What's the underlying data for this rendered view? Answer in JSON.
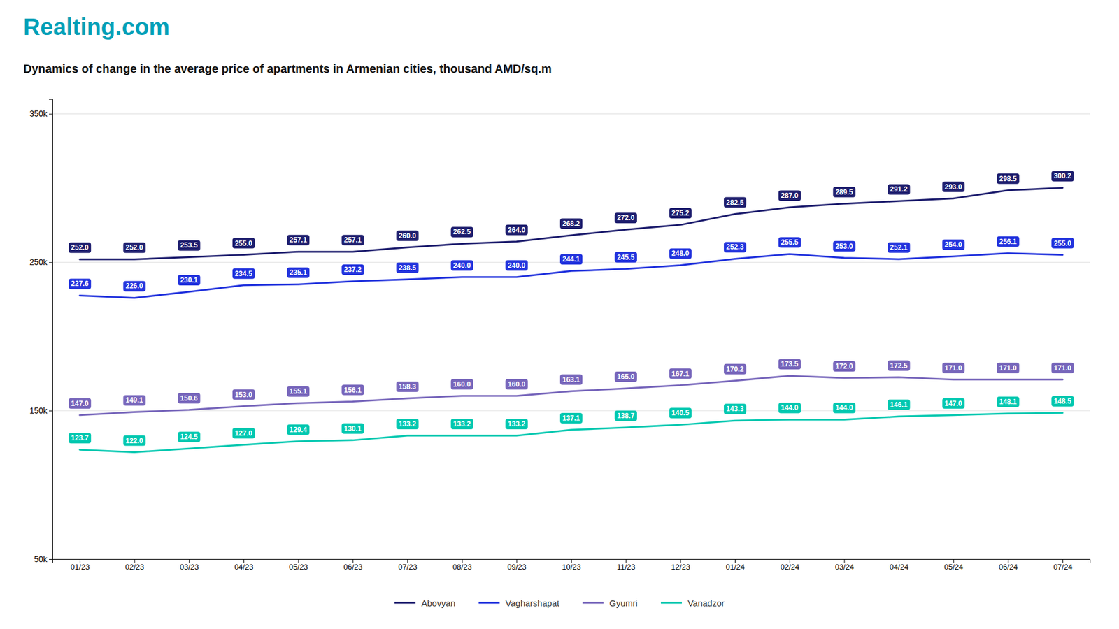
{
  "chart_data": {
    "type": "line",
    "title": "Dynamics of change in the average price of apartments in Armenian cities, thousand AMD/sq.m",
    "annotations": [
      "Realting.com"
    ],
    "categories": [
      "01/23",
      "02/23",
      "03/23",
      "04/23",
      "05/23",
      "06/23",
      "07/23",
      "08/23",
      "09/23",
      "10/23",
      "11/23",
      "12/23",
      "01/24",
      "02/24",
      "03/24",
      "04/24",
      "05/24",
      "06/24",
      "07/24"
    ],
    "series": [
      {
        "name": "Abovyan",
        "color": "#1e1e6e",
        "values": [
          252.0,
          252.0,
          253.5,
          255.0,
          257.1,
          257.1,
          260.0,
          262.5,
          264.0,
          268.2,
          272.0,
          275.2,
          282.5,
          287.0,
          289.5,
          291.2,
          293.0,
          298.5,
          300.2
        ],
        "value_labels": [
          "252.0",
          "252.0",
          "253.5",
          "255.0",
          "257.1",
          "257.1",
          "260.0",
          "262.5",
          "264.0",
          "268.2",
          "272.0",
          "275.2",
          "282.5",
          "287.0",
          "289.5",
          "291.2",
          "293.0",
          "298.5",
          "300.2"
        ]
      },
      {
        "name": "Vagharshapat",
        "color": "#2233dd",
        "values": [
          227.6,
          226.0,
          230.1,
          234.5,
          235.1,
          237.2,
          238.5,
          240.0,
          240.0,
          244.1,
          245.5,
          248.0,
          252.3,
          255.5,
          253.0,
          252.1,
          254.0,
          256.1,
          255.0
        ],
        "value_labels": [
          "227.6",
          "226.0",
          "230.1",
          "234.5",
          "235.1",
          "237.2",
          "238.5",
          "240.0",
          "240.0",
          "244.1",
          "245.5",
          "248.0",
          "252.3",
          "255.5",
          "253.0",
          "252.1",
          "254.0",
          "256.1",
          "255.0"
        ]
      },
      {
        "name": "Gyumri",
        "color": "#7766bb",
        "values": [
          147.0,
          149.1,
          150.6,
          153.0,
          155.1,
          156.1,
          158.3,
          160.0,
          160.0,
          163.1,
          165.0,
          167.1,
          170.2,
          173.5,
          172.0,
          172.5,
          171.0,
          171.0,
          171.0
        ],
        "value_labels": [
          "147.0",
          "149.1",
          "150.6",
          "153.0",
          "155.1",
          "156.1",
          "158.3",
          "160.0",
          "160.0",
          "163.1",
          "165.0",
          "167.1",
          "170.2",
          "173.5",
          "172.0",
          "172.5",
          "171.0",
          "171.0",
          "171.0"
        ]
      },
      {
        "name": "Vanadzor",
        "color": "#00c8b0",
        "values": [
          123.7,
          122.0,
          124.5,
          127.0,
          129.4,
          130.1,
          133.2,
          133.2,
          133.2,
          137.1,
          138.7,
          140.5,
          143.3,
          144.0,
          144.0,
          146.1,
          147.0,
          148.1,
          148.5
        ],
        "value_labels": [
          "123.7",
          "122.0",
          "124.5",
          "127.0",
          "129.4",
          "130.1",
          "133.2",
          "133.2",
          "133.2",
          "137.1",
          "138.7",
          "140.5",
          "143.3",
          "144.0",
          "144.0",
          "146.1",
          "147.0",
          "148.1",
          "148.5"
        ]
      }
    ],
    "ylim": [
      50,
      360
    ],
    "yticks": [
      {
        "value": 50,
        "label": "50k"
      },
      {
        "value": 150,
        "label": "150k"
      },
      {
        "value": 250,
        "label": "250k"
      },
      {
        "value": 350,
        "label": "350k"
      }
    ],
    "grid": true,
    "legend": "bottom",
    "data_labels": true
  }
}
